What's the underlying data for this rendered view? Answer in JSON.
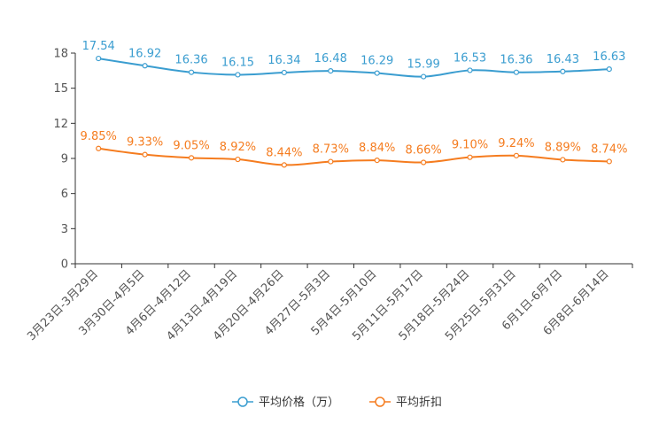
{
  "chart_data": {
    "type": "line",
    "title": "",
    "xlabel": "",
    "ylabel": "",
    "ylim": [
      0,
      18
    ],
    "yticks": [
      "0",
      "3",
      "6",
      "9",
      "12",
      "15",
      "18"
    ],
    "categories": [
      "3月23日-3月29日",
      "3月30日-4月5日",
      "4月6日-4月12日",
      "4月13日-4月19日",
      "4月20日-4月26日",
      "4月27日-5月3日",
      "5月4日-5月10日",
      "5月11日-5月17日",
      "5月18日-5月24日",
      "5月25日-5月31日",
      "6月1日-6月7日",
      "6月8日-6月14日"
    ],
    "series": [
      {
        "name": "平均价格（万）",
        "color": "#3a9dd0",
        "values": [
          17.54,
          16.92,
          16.36,
          16.15,
          16.34,
          16.48,
          16.29,
          15.99,
          16.53,
          16.36,
          16.43,
          16.63
        ],
        "labels": [
          "17.54",
          "16.92",
          "16.36",
          "16.15",
          "16.34",
          "16.48",
          "16.29",
          "15.99",
          "16.53",
          "16.36",
          "16.43",
          "16.63"
        ]
      },
      {
        "name": "平均折扣",
        "color": "#f57c1f",
        "values": [
          9.85,
          9.33,
          9.05,
          8.92,
          8.44,
          8.73,
          8.84,
          8.66,
          9.1,
          9.24,
          8.89,
          8.74
        ],
        "labels": [
          "9.85%",
          "9.33%",
          "9.05%",
          "8.92%",
          "8.44%",
          "8.73%",
          "8.84%",
          "8.66%",
          "9.10%",
          "9.24%",
          "8.89%",
          "8.74%"
        ]
      }
    ],
    "grid": false,
    "legend_position": "bottom-center"
  }
}
